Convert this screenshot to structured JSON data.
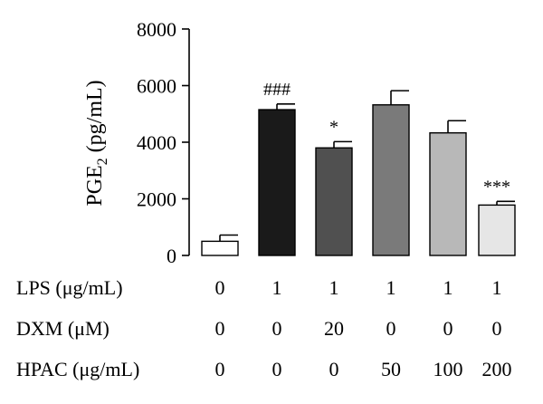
{
  "chart_data": {
    "type": "bar",
    "ylabel": {
      "main": "PGE",
      "sub": "2",
      "tail": " (pg/mL)"
    },
    "ylim": [
      0,
      8000
    ],
    "yticks": [
      "0",
      "2000",
      "4000",
      "6000",
      "8000"
    ],
    "values": [
      500,
      5150,
      3800,
      5320,
      4330,
      1780
    ],
    "errors": [
      220,
      200,
      220,
      500,
      430,
      130
    ],
    "bar_colors": [
      "#ffffff",
      "#1a1a1a",
      "#505050",
      "#7a7a7a",
      "#b8b8b8",
      "#e6e6e6"
    ],
    "significance": [
      "",
      "###",
      "*",
      "",
      "",
      "***"
    ],
    "condition_rows": [
      {
        "label": "LPS (μg/mL)",
        "values": [
          "0",
          "1",
          "1",
          "1",
          "1",
          "1"
        ]
      },
      {
        "label": "DXM (μM)",
        "values": [
          "0",
          "0",
          "20",
          "0",
          "0",
          "0"
        ]
      },
      {
        "label": "HPAC (μg/mL)",
        "values": [
          "0",
          "0",
          "0",
          "50",
          "100",
          "200"
        ]
      }
    ]
  }
}
